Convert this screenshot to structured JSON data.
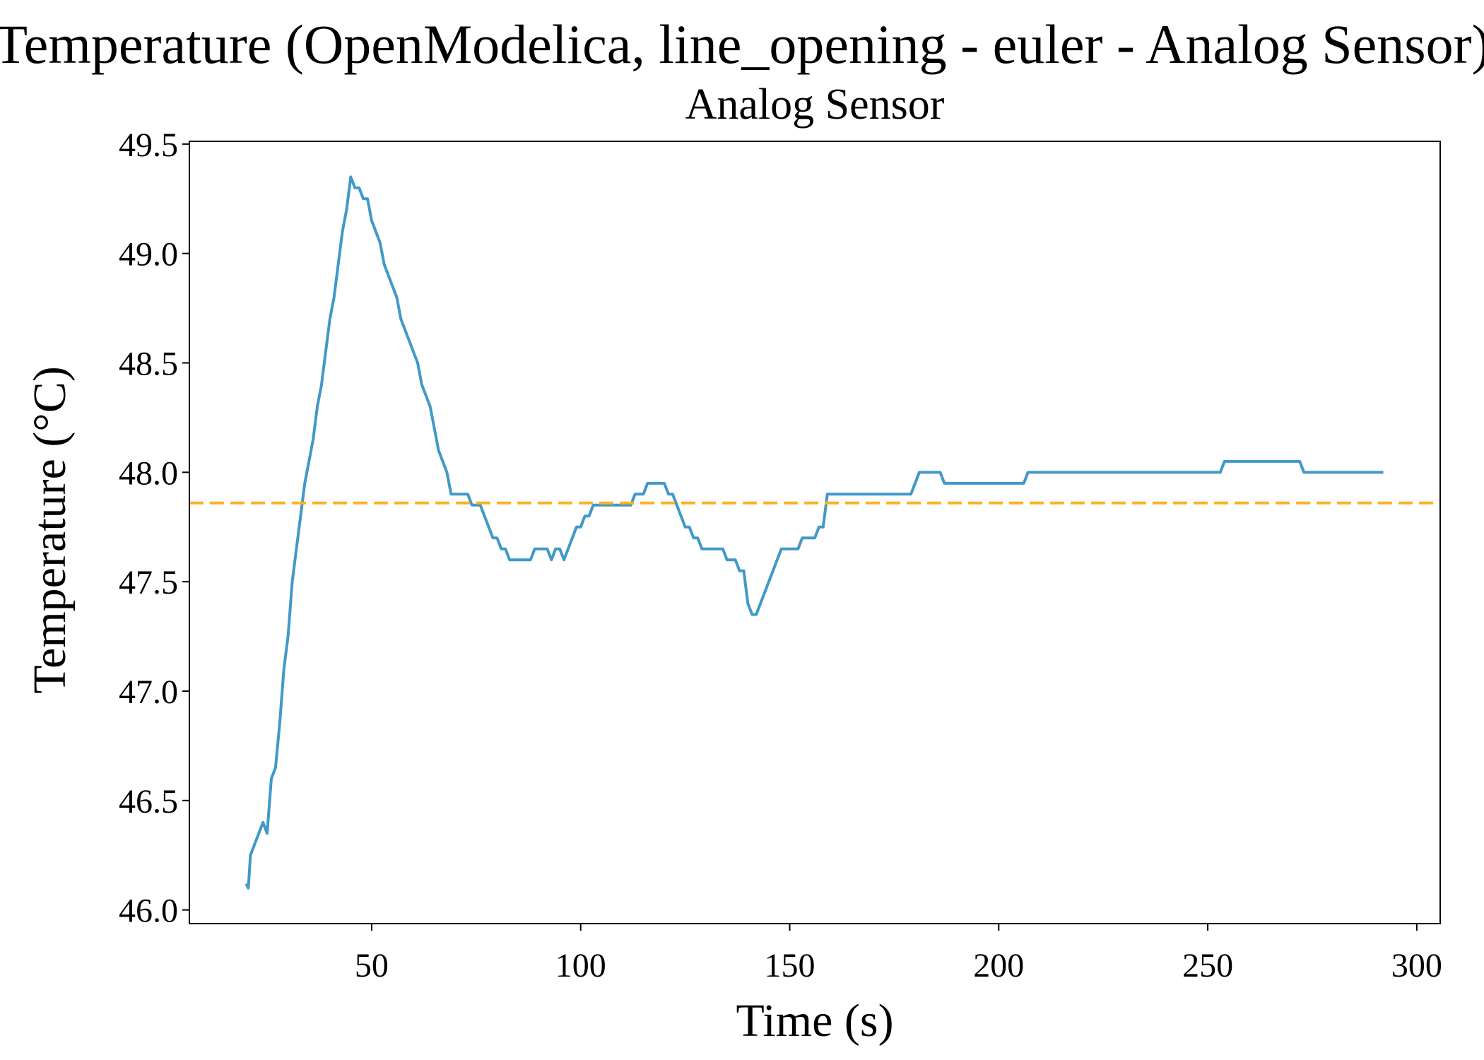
{
  "chart_data": {
    "type": "line",
    "title": "Temperature (OpenModelica, line_opening - euler - Analog Sensor)",
    "subtitle": "Analog Sensor",
    "xlabel": "Time (s)",
    "ylabel": "Temperature (°C)",
    "xlim": [
      6.4,
      305.6
    ],
    "ylim": [
      45.9375,
      49.5125
    ],
    "xticks": [
      50,
      100,
      150,
      200,
      250,
      300
    ],
    "yticks": [
      {
        "value": 46.0,
        "label": "46.0"
      },
      46.5,
      {
        "value": 47.0,
        "label": "47.0"
      },
      47.5,
      {
        "value": 48.0,
        "label": "48.0"
      },
      48.5,
      {
        "value": 49.0,
        "label": "49.0"
      },
      49.5
    ],
    "reference_line": {
      "value": 47.86,
      "color": "#fbb321"
    },
    "x": [
      20,
      20.5,
      21,
      22,
      24,
      25,
      26,
      27,
      28,
      29,
      30,
      31,
      32,
      33,
      34,
      35,
      36,
      37,
      38,
      39,
      40,
      41,
      42,
      43,
      44,
      45,
      46,
      47,
      48,
      49,
      50,
      51,
      52,
      53,
      54,
      55,
      56,
      57,
      58,
      59,
      60,
      61,
      62,
      63,
      64,
      65,
      66,
      67,
      68,
      69,
      73,
      74,
      76,
      77,
      78,
      79,
      80,
      81,
      82,
      83,
      88,
      89,
      92,
      93,
      94,
      95,
      96,
      97,
      98,
      99,
      100,
      101,
      102,
      103,
      112,
      113,
      115,
      116,
      120,
      121,
      122,
      123,
      124,
      125,
      126,
      127,
      128,
      129,
      134,
      135,
      137,
      138,
      139,
      140,
      141,
      142,
      143,
      144,
      145,
      146,
      147,
      148,
      152,
      153,
      156,
      157,
      158,
      159,
      179,
      181,
      186,
      187,
      206,
      207,
      253,
      254,
      272,
      273,
      292
    ],
    "series": [
      {
        "name": "Analog Sensor",
        "color": "#4199c8",
        "values": [
          46.12,
          46.1,
          46.25,
          46.3,
          46.4,
          46.35,
          46.6,
          46.65,
          46.85,
          47.1,
          47.25,
          47.5,
          47.65,
          47.8,
          47.95,
          48.05,
          48.15,
          48.3,
          48.4,
          48.55,
          48.7,
          48.8,
          48.95,
          49.1,
          49.2,
          49.35,
          49.3,
          49.3,
          49.25,
          49.25,
          49.15,
          49.1,
          49.05,
          48.95,
          48.9,
          48.85,
          48.8,
          48.7,
          48.65,
          48.6,
          48.55,
          48.5,
          48.4,
          48.35,
          48.3,
          48.2,
          48.1,
          48.05,
          48.0,
          47.9,
          47.9,
          47.85,
          47.85,
          47.8,
          47.75,
          47.7,
          47.7,
          47.65,
          47.65,
          47.6,
          47.6,
          47.65,
          47.65,
          47.6,
          47.65,
          47.65,
          47.6,
          47.65,
          47.7,
          47.75,
          47.75,
          47.8,
          47.8,
          47.85,
          47.85,
          47.9,
          47.9,
          47.95,
          47.95,
          47.9,
          47.9,
          47.85,
          47.8,
          47.75,
          47.75,
          47.7,
          47.7,
          47.65,
          47.65,
          47.6,
          47.6,
          47.55,
          47.55,
          47.4,
          47.35,
          47.35,
          47.4,
          47.45,
          47.5,
          47.55,
          47.6,
          47.65,
          47.65,
          47.7,
          47.7,
          47.75,
          47.75,
          47.9,
          47.9,
          48.0,
          48.0,
          47.95,
          47.95,
          48.0,
          48.0,
          48.05,
          48.05,
          48.0,
          48.0
        ]
      }
    ]
  }
}
